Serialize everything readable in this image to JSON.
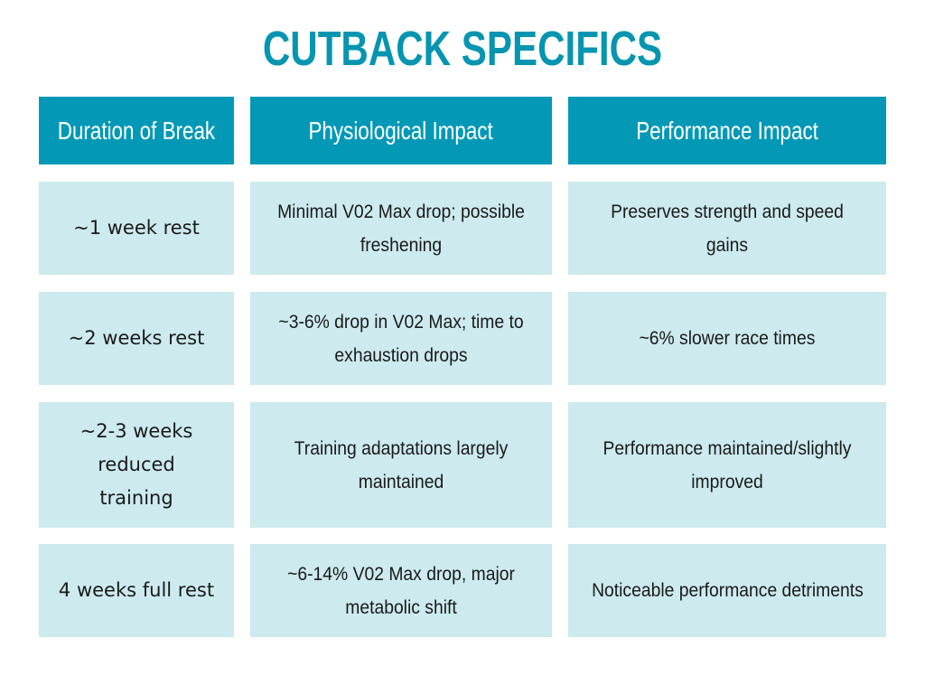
{
  "title": "CUTBACK SPECIFICS",
  "headers": {
    "duration": "Duration of Break",
    "physiological": "Physiological Impact",
    "performance": "Performance Impact"
  },
  "rows": [
    {
      "duration": "~1 week rest",
      "physiological": "Minimal V02 Max drop; possible freshening",
      "performance": "Preserves strength and speed gains"
    },
    {
      "duration": "~2 weeks rest",
      "physiological": "~3-6% drop in V02 Max; time to exhaustion drops",
      "performance": "~6% slower race times"
    },
    {
      "duration": "~2-3 weeks reduced training",
      "physiological": "Training adaptations largely maintained",
      "performance": "Performance maintained/slightly improved"
    },
    {
      "duration": "4 weeks full rest",
      "physiological": "~6-14% V02 Max drop, major metabolic shift",
      "performance": "Noticeable performance detriments"
    }
  ],
  "colors": {
    "accent": "#0595b0",
    "header_bg": "#0399b6",
    "cell_bg": "#cdeaee"
  }
}
